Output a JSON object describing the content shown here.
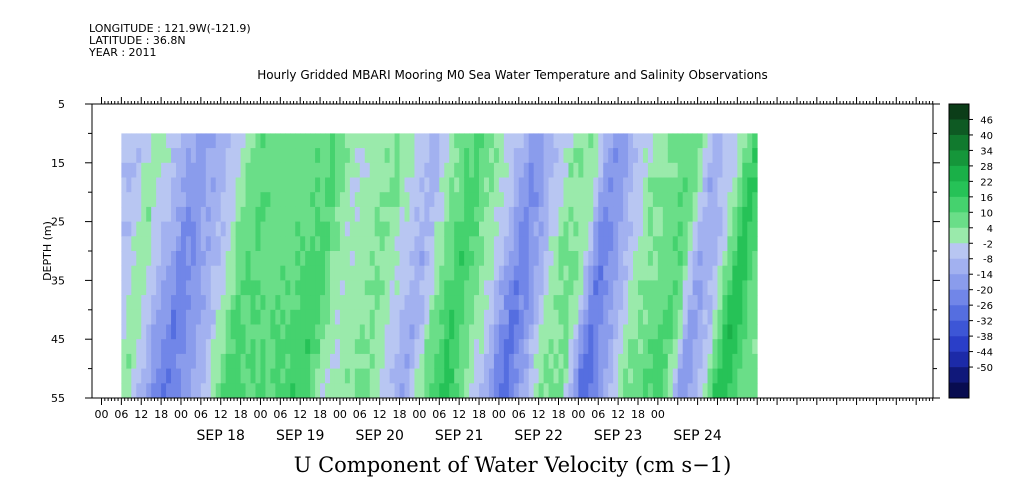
{
  "header": {
    "longitude": "LONGITUDE : 121.9W(-121.9)",
    "latitude": "LATITUDE : 36.8N",
    "year": "YEAR : 2011"
  },
  "chart_data": {
    "type": "heatmap",
    "title": "Hourly Gridded MBARI Mooring M0 Sea Water Temperature and Salinity Observations",
    "xlabel": "U Component of Water Velocity (cm s−1)",
    "ylabel": "DEPTH (m)",
    "ylim": [
      55,
      5
    ],
    "y_ticks": [
      5,
      15,
      25,
      35,
      45,
      55
    ],
    "x_hour_ticks": [
      "00",
      "06",
      "12",
      "18",
      "00",
      "06",
      "12",
      "18",
      "00",
      "06",
      "12",
      "18",
      "00",
      "06",
      "12",
      "18",
      "00",
      "06",
      "12",
      "18",
      "00",
      "06",
      "12",
      "18",
      "00",
      "06",
      "12",
      "18",
      "00"
    ],
    "x_day_labels": [
      "SEP 18",
      "SEP 19",
      "SEP 20",
      "SEP 21",
      "SEP 22",
      "SEP 23",
      "SEP 24"
    ],
    "data_depth_range": [
      10,
      55
    ],
    "data_time_start": "SEP 17 06",
    "colorbar": {
      "labels": [
        "46",
        "40",
        "34",
        "28",
        "22",
        "16",
        "10",
        "4",
        "-2",
        "-8",
        "-14",
        "-20",
        "-26",
        "-32",
        "-38",
        "-44",
        "-50"
      ],
      "colors": [
        "#0b3d18",
        "#0e5a23",
        "#117a2e",
        "#15963a",
        "#1ab048",
        "#26c257",
        "#45d26e",
        "#6ade88",
        "#9aeaab",
        "#b8c6f2",
        "#a2b1f0",
        "#8a9cec",
        "#7186e8",
        "#556ee0",
        "#3d56d6",
        "#2a3ec8",
        "#1c2aa8",
        "#10187a",
        "#080c50"
      ]
    },
    "u_velocity_bands": [
      {
        "hour": 6,
        "u": -6
      },
      {
        "hour": 12,
        "u": 2
      },
      {
        "hour": 24,
        "u": -18
      },
      {
        "hour": 36,
        "u": -4
      },
      {
        "hour": 42,
        "u": 8
      },
      {
        "hour": 54,
        "u": 6
      },
      {
        "hour": 66,
        "u": 10
      },
      {
        "hour": 72,
        "u": -2
      },
      {
        "hour": 84,
        "u": 4
      },
      {
        "hour": 96,
        "u": -10
      },
      {
        "hour": 102,
        "u": 4
      },
      {
        "hour": 108,
        "u": 12
      },
      {
        "hour": 120,
        "u": -6
      },
      {
        "hour": 126,
        "u": -20
      },
      {
        "hour": 138,
        "u": 4
      },
      {
        "hour": 144,
        "u": 2
      },
      {
        "hour": 150,
        "u": -20
      },
      {
        "hour": 162,
        "u": 2
      },
      {
        "hour": 174,
        "u": 8
      },
      {
        "hour": 180,
        "u": -12
      },
      {
        "hour": 186,
        "u": -4
      },
      {
        "hour": 192,
        "u": 16
      },
      {
        "hour": 198,
        "u": 4
      }
    ]
  }
}
